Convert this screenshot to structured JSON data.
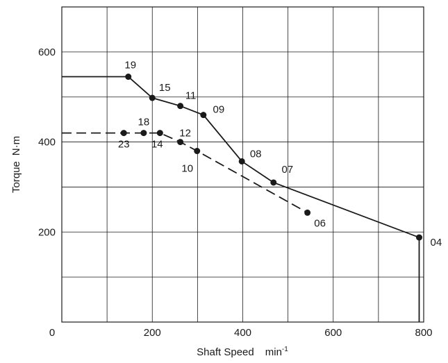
{
  "chart_data": {
    "type": "line",
    "xlabel": "Shaft Speed",
    "xlabel_unit": "min",
    "xlabel_unit_sup": "-1",
    "ylabel": "Torque",
    "ylabel_unit": "N·m",
    "xlim": [
      0,
      800
    ],
    "ylim": [
      0,
      700
    ],
    "x_ticks": [
      0,
      200,
      400,
      600,
      800
    ],
    "y_ticks": [
      200,
      400,
      600
    ],
    "origin_label": "0",
    "grid": true,
    "series": [
      {
        "style": "solid",
        "color": "#1a1a1a",
        "start_x": 0,
        "start_y": 545,
        "end_x": 790,
        "end_y": 0,
        "points": [
          {
            "label": "19",
            "x": 147,
            "y": 545
          },
          {
            "label": "15",
            "x": 200,
            "y": 498
          },
          {
            "label": "11",
            "x": 262,
            "y": 480
          },
          {
            "label": "09",
            "x": 313,
            "y": 460
          },
          {
            "label": "08",
            "x": 398,
            "y": 357
          },
          {
            "label": "07",
            "x": 468,
            "y": 310
          },
          {
            "label": "04",
            "x": 790,
            "y": 188
          }
        ]
      },
      {
        "style": "dashed",
        "color": "#1a1a1a",
        "start_x": 0,
        "start_y": 420,
        "points": [
          {
            "label": "23",
            "x": 137,
            "y": 420
          },
          {
            "label": "18",
            "x": 181,
            "y": 420
          },
          {
            "label": "14",
            "x": 217,
            "y": 420
          },
          {
            "label": "12",
            "x": 262,
            "y": 400
          },
          {
            "label": "10",
            "x": 299,
            "y": 380
          },
          {
            "label": "06",
            "x": 543,
            "y": 243
          }
        ]
      }
    ]
  }
}
